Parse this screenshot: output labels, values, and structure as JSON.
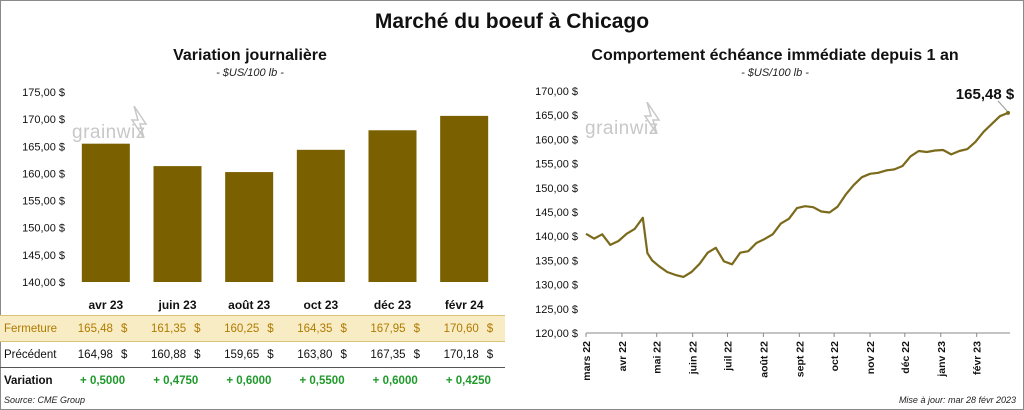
{
  "title": "Marché du boeuf à Chicago",
  "left": {
    "subtitle": "Variation journalière",
    "units": "- $US/100 lb -"
  },
  "right": {
    "subtitle": "Comportement échéance immédiate depuis 1 an",
    "units": "- $US/100 lb -",
    "last_label": "165,48 $"
  },
  "watermark": "grainwiz",
  "table": {
    "close_label": "Fermeture",
    "prev_label": "Précédent",
    "var_label": "Variation",
    "currency": "$",
    "close": [
      "165,48",
      "161,35",
      "160,25",
      "164,35",
      "167,95",
      "170,60"
    ],
    "prev": [
      "164,98",
      "160,88",
      "159,65",
      "163,80",
      "167,35",
      "170,18"
    ],
    "var": [
      "+ 0,5000",
      "+ 0,4750",
      "+ 0,6000",
      "+ 0,5500",
      "+ 0,6000",
      "+ 0,4250"
    ]
  },
  "source": "Source: CME Group",
  "updated": "Mise à jour: mar 28 févr 2023",
  "colors": {
    "bar": "#7b6000",
    "line": "#7b6a1c"
  },
  "chart_data": [
    {
      "type": "bar",
      "categories": [
        "avr 23",
        "juin 23",
        "août 23",
        "oct 23",
        "déc 23",
        "févr 24"
      ],
      "values": [
        165.48,
        161.35,
        160.25,
        164.35,
        167.95,
        170.6
      ],
      "ylim": [
        140,
        175
      ],
      "yticks": [
        "140,00 $",
        "145,00 $",
        "150,00 $",
        "155,00 $",
        "160,00 $",
        "165,00 $",
        "170,00 $",
        "175,00 $"
      ],
      "grid": false
    },
    {
      "type": "line",
      "ylim": [
        120,
        170
      ],
      "yticks": [
        "120,00 $",
        "125,00 $",
        "130,00 $",
        "135,00 $",
        "140,00 $",
        "145,00 $",
        "150,00 $",
        "155,00 $",
        "160,00 $",
        "165,00 $",
        "170,00 $"
      ],
      "xticks": [
        "mars 22",
        "avr 22",
        "mai 22",
        "juin 22",
        "juil 22",
        "août 22",
        "sept 22",
        "oct 22",
        "nov 22",
        "déc 22",
        "janv 23",
        "févr 23"
      ],
      "series": [
        {
          "x": [
            "2022-03-01",
            "2022-03-08",
            "2022-03-15",
            "2022-03-22",
            "2022-03-29",
            "2022-04-05",
            "2022-04-12",
            "2022-04-19",
            "2022-04-23",
            "2022-04-27",
            "2022-05-03",
            "2022-05-10",
            "2022-05-17",
            "2022-05-24",
            "2022-05-31",
            "2022-06-07",
            "2022-06-14",
            "2022-06-21",
            "2022-06-28",
            "2022-07-05",
            "2022-07-12",
            "2022-07-19",
            "2022-07-26",
            "2022-08-02",
            "2022-08-09",
            "2022-08-16",
            "2022-08-23",
            "2022-08-30",
            "2022-09-06",
            "2022-09-13",
            "2022-09-20",
            "2022-09-27",
            "2022-10-04",
            "2022-10-11",
            "2022-10-18",
            "2022-10-25",
            "2022-11-01",
            "2022-11-08",
            "2022-11-15",
            "2022-11-22",
            "2022-11-29",
            "2022-12-06",
            "2022-12-13",
            "2022-12-20",
            "2022-12-27",
            "2023-01-03",
            "2023-01-10",
            "2023-01-17",
            "2023-01-24",
            "2023-01-31",
            "2023-02-07",
            "2023-02-14",
            "2023-02-21",
            "2023-02-28"
          ],
          "y": [
            140.5,
            139.5,
            140.4,
            138.2,
            139.0,
            140.5,
            141.5,
            143.8,
            136.5,
            135.0,
            133.8,
            132.6,
            132.0,
            131.6,
            132.6,
            134.3,
            136.6,
            137.6,
            134.8,
            134.2,
            136.6,
            136.9,
            138.6,
            139.4,
            140.4,
            142.6,
            143.6,
            145.8,
            146.2,
            146.0,
            145.1,
            144.9,
            146.1,
            148.6,
            150.6,
            152.2,
            152.9,
            153.1,
            153.6,
            153.8,
            154.5,
            156.5,
            157.6,
            157.4,
            157.7,
            157.8,
            156.9,
            157.6,
            158.0,
            159.5,
            161.6,
            163.2,
            164.8,
            165.48
          ]
        }
      ]
    }
  ]
}
